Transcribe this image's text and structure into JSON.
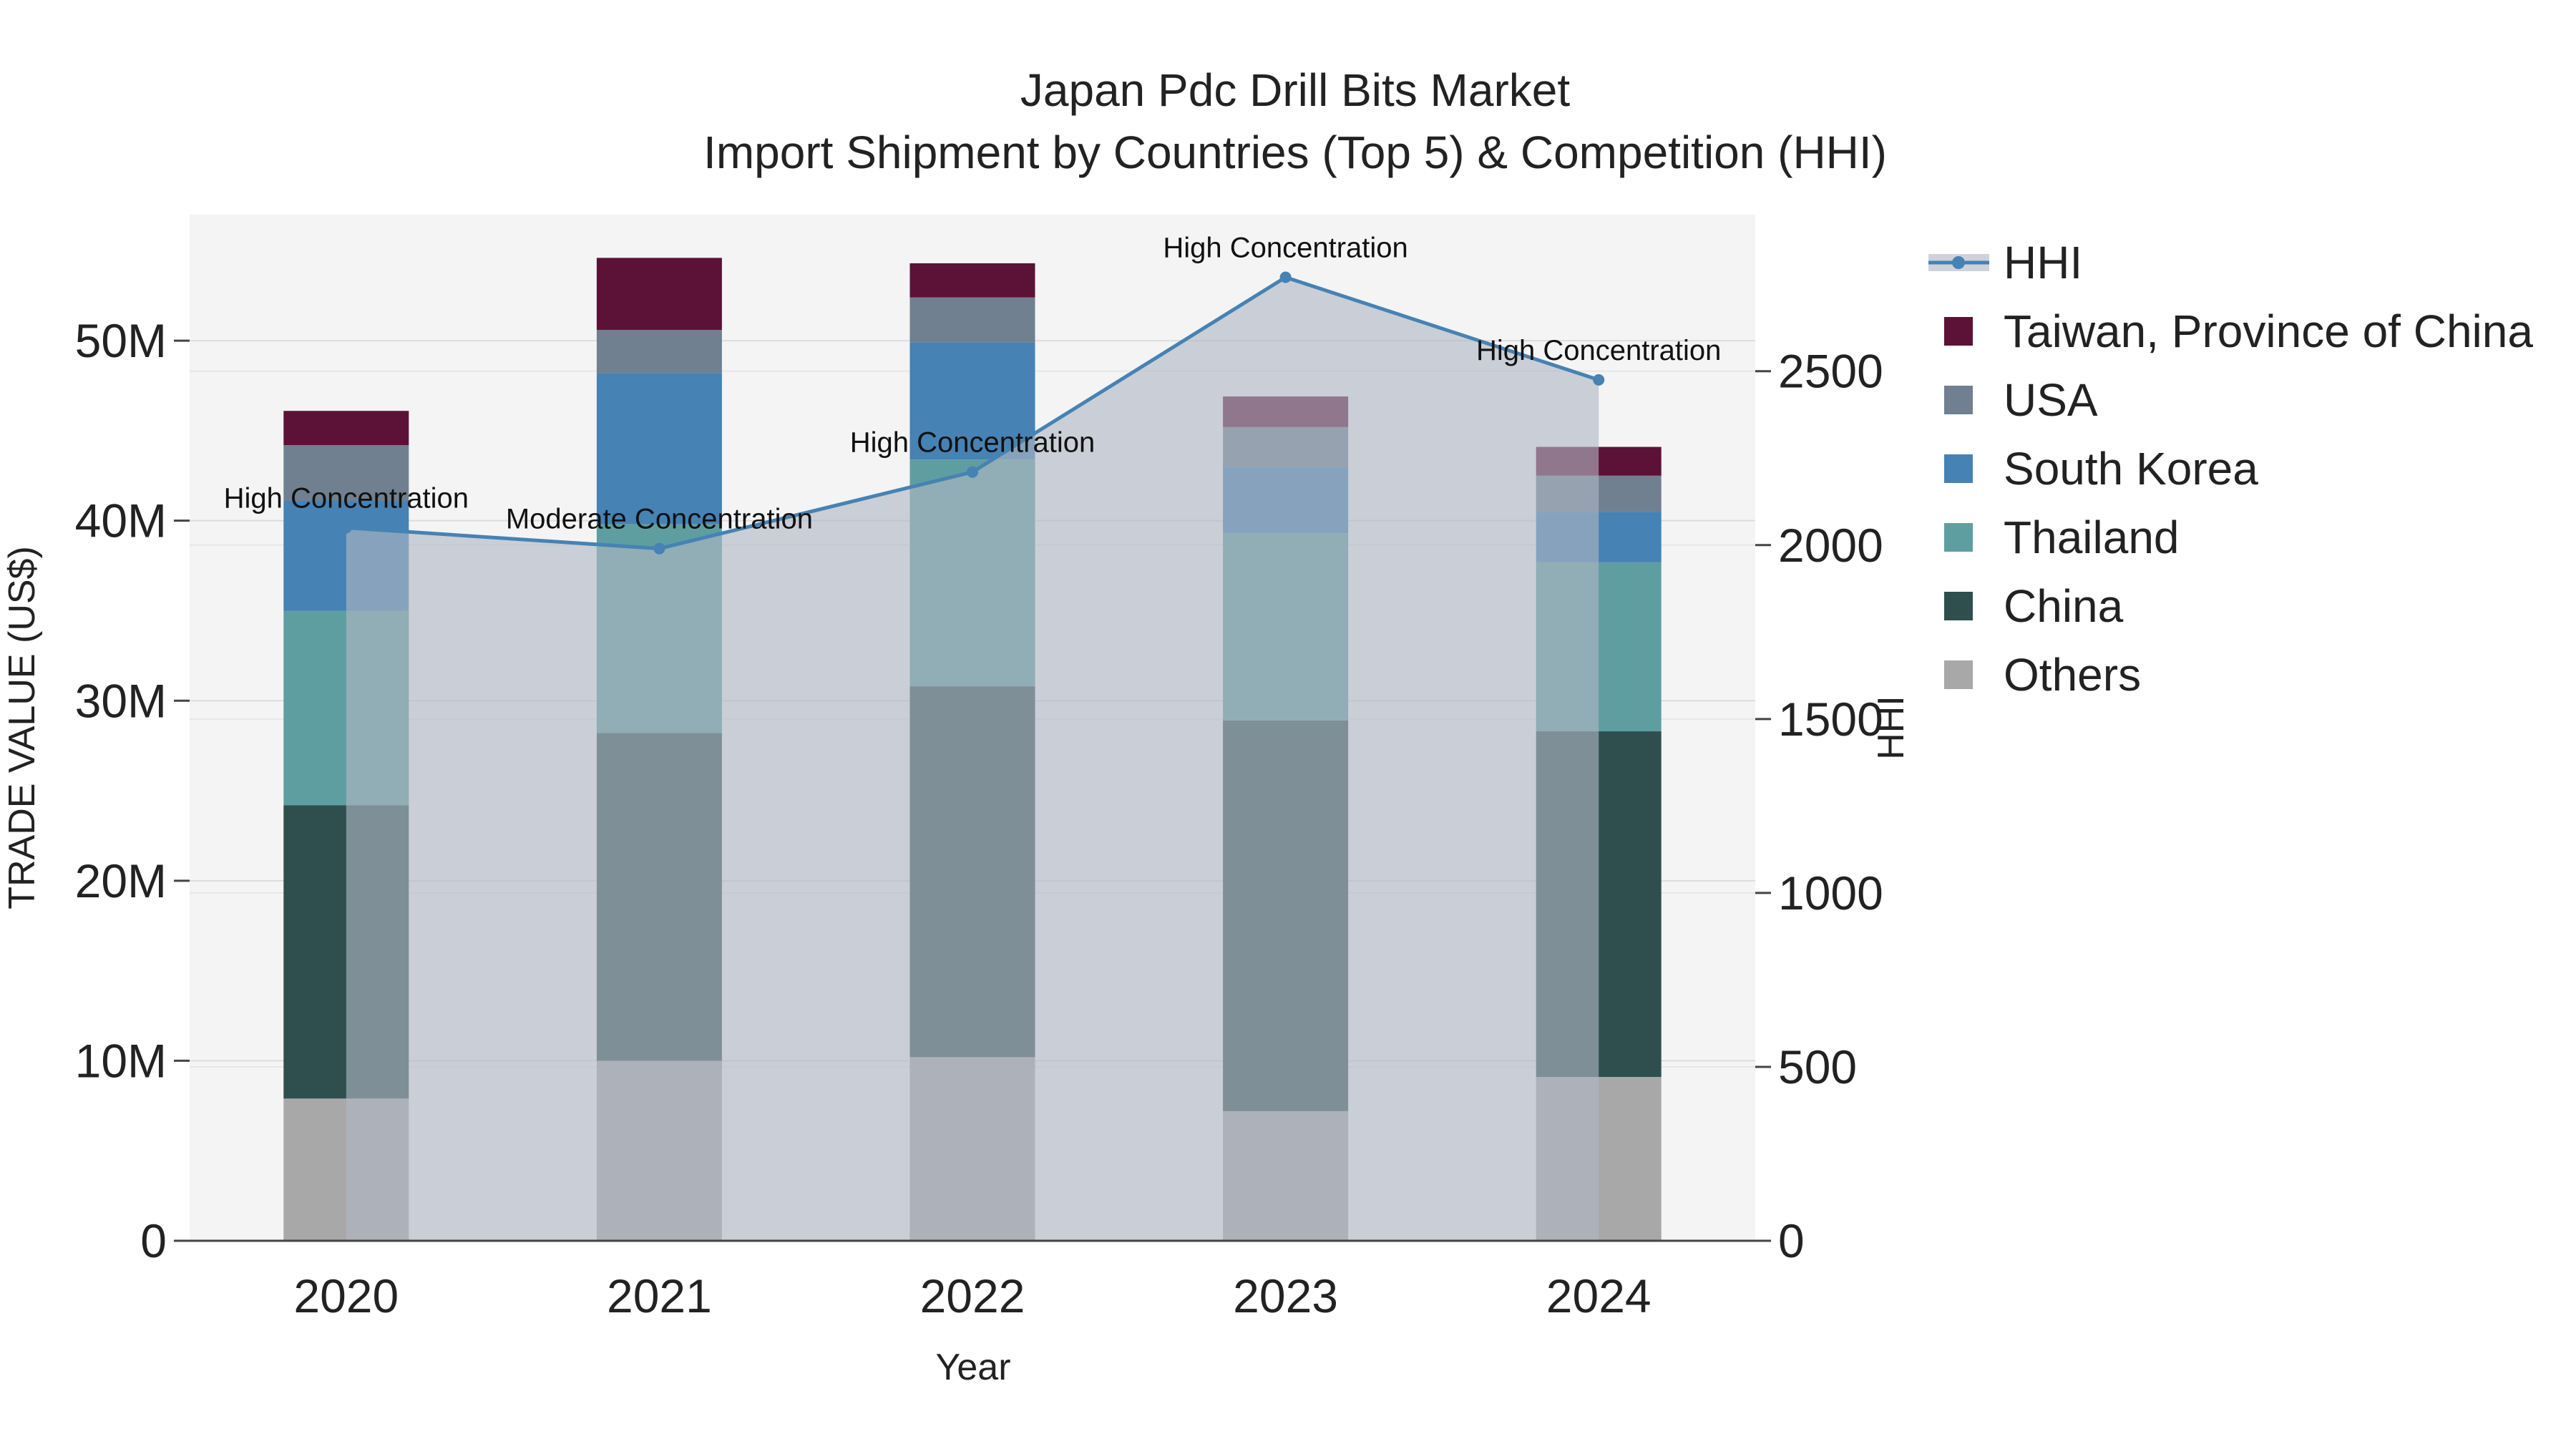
{
  "chart_data": {
    "type": "bar",
    "title": "Japan Pdc Drill Bits Market",
    "subtitle": "Import Shipment by Countries (Top 5) & Competition (HHI)",
    "xlabel": "Year",
    "ylabel": "TRADE VALUE (US$)",
    "y2label": "HHI",
    "categories": [
      "2020",
      "2021",
      "2022",
      "2023",
      "2024"
    ],
    "ylim": [
      0,
      57000000
    ],
    "y2lim": [
      0,
      2950
    ],
    "yticks": [
      0,
      10000000,
      20000000,
      30000000,
      40000000,
      50000000
    ],
    "yticklabels": [
      "0",
      "10M",
      "20M",
      "30M",
      "40M",
      "50M"
    ],
    "y2ticks": [
      0,
      500,
      1000,
      1500,
      2000,
      2500
    ],
    "y2ticklabels": [
      "0",
      "500",
      "1000",
      "1500",
      "2000",
      "2500"
    ],
    "stacked": true,
    "series": [
      {
        "name": "Others",
        "color": "#a8a8a8",
        "values": [
          7900000,
          10000000,
          10200000,
          7200000,
          9100000
        ]
      },
      {
        "name": "China",
        "color": "#2f4f4f",
        "values": [
          16300000,
          18200000,
          20600000,
          21700000,
          19200000
        ]
      },
      {
        "name": "Thailand",
        "color": "#5f9ea0",
        "values": [
          10800000,
          11600000,
          12600000,
          10400000,
          9400000
        ]
      },
      {
        "name": "South Korea",
        "color": "#4682b4",
        "values": [
          6100000,
          8400000,
          6500000,
          3700000,
          2800000
        ]
      },
      {
        "name": "USA",
        "color": "#708090",
        "values": [
          3100000,
          2400000,
          2500000,
          2200000,
          2000000
        ]
      },
      {
        "name": "Taiwan, Province of China",
        "color": "#5c1236",
        "values": [
          1900000,
          4000000,
          1900000,
          1700000,
          1600000
        ]
      }
    ],
    "hhi": {
      "name": "HHI",
      "color": "#4682b4",
      "values": [
        2050,
        1990,
        2210,
        2770,
        2475
      ],
      "labels": [
        "High Concentration",
        "Moderate Concentration",
        "High Concentration",
        "High Concentration",
        "High Concentration"
      ]
    },
    "legend": {
      "position": "right",
      "order": [
        "HHI",
        "Taiwan, Province of China",
        "USA",
        "South Korea",
        "Thailand",
        "China",
        "Others"
      ]
    }
  }
}
